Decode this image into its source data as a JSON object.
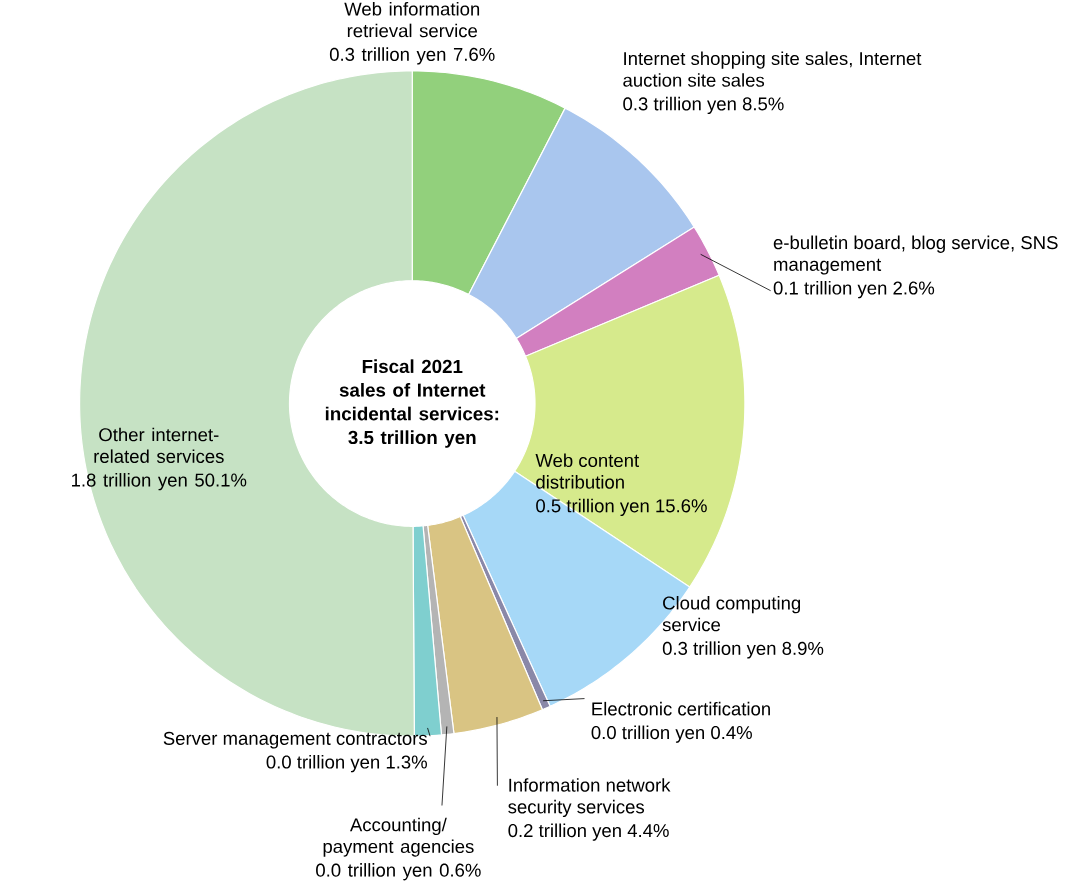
{
  "chart_data": {
    "type": "donut",
    "title": "Fiscal 2021 sales of Internet incidental services: 3.5 trillion yen",
    "categories": [
      "Web information retrieval service",
      "Internet shopping site sales, Internet auction site sales",
      "e-bulletin board, blog service, SNS management",
      "Web content distribution",
      "Cloud computing service",
      "Electronic certification",
      "Information network security services",
      "Accounting/ payment agencies",
      "Server management contractors",
      "Other internet-related services"
    ],
    "values": [
      7.6,
      8.5,
      2.6,
      15.6,
      8.9,
      0.4,
      4.4,
      0.6,
      1.3,
      50.1
    ],
    "value_labels": [
      "0.3 trillion yen 7.6%",
      "0.3 trillion yen 8.5%",
      "0.1 trillion yen 2.6%",
      "0.5 trillion yen 15.6%",
      "0.3 trillion yen 8.9%",
      "0.0 trillion yen 0.4%",
      "0.2 trillion yen 4.4%",
      "0.0 trillion yen 0.6%",
      "0.0 trillion yen 1.3%",
      "1.8 trillion yen 50.1%"
    ],
    "colors": [
      "#92d07c",
      "#a9c6ee",
      "#d27fc0",
      "#d6ea8c",
      "#a6d8f7",
      "#8a88a8",
      "#d9c483",
      "#b4b4b4",
      "#7fcfcf",
      "#c6e2c4"
    ]
  }
}
